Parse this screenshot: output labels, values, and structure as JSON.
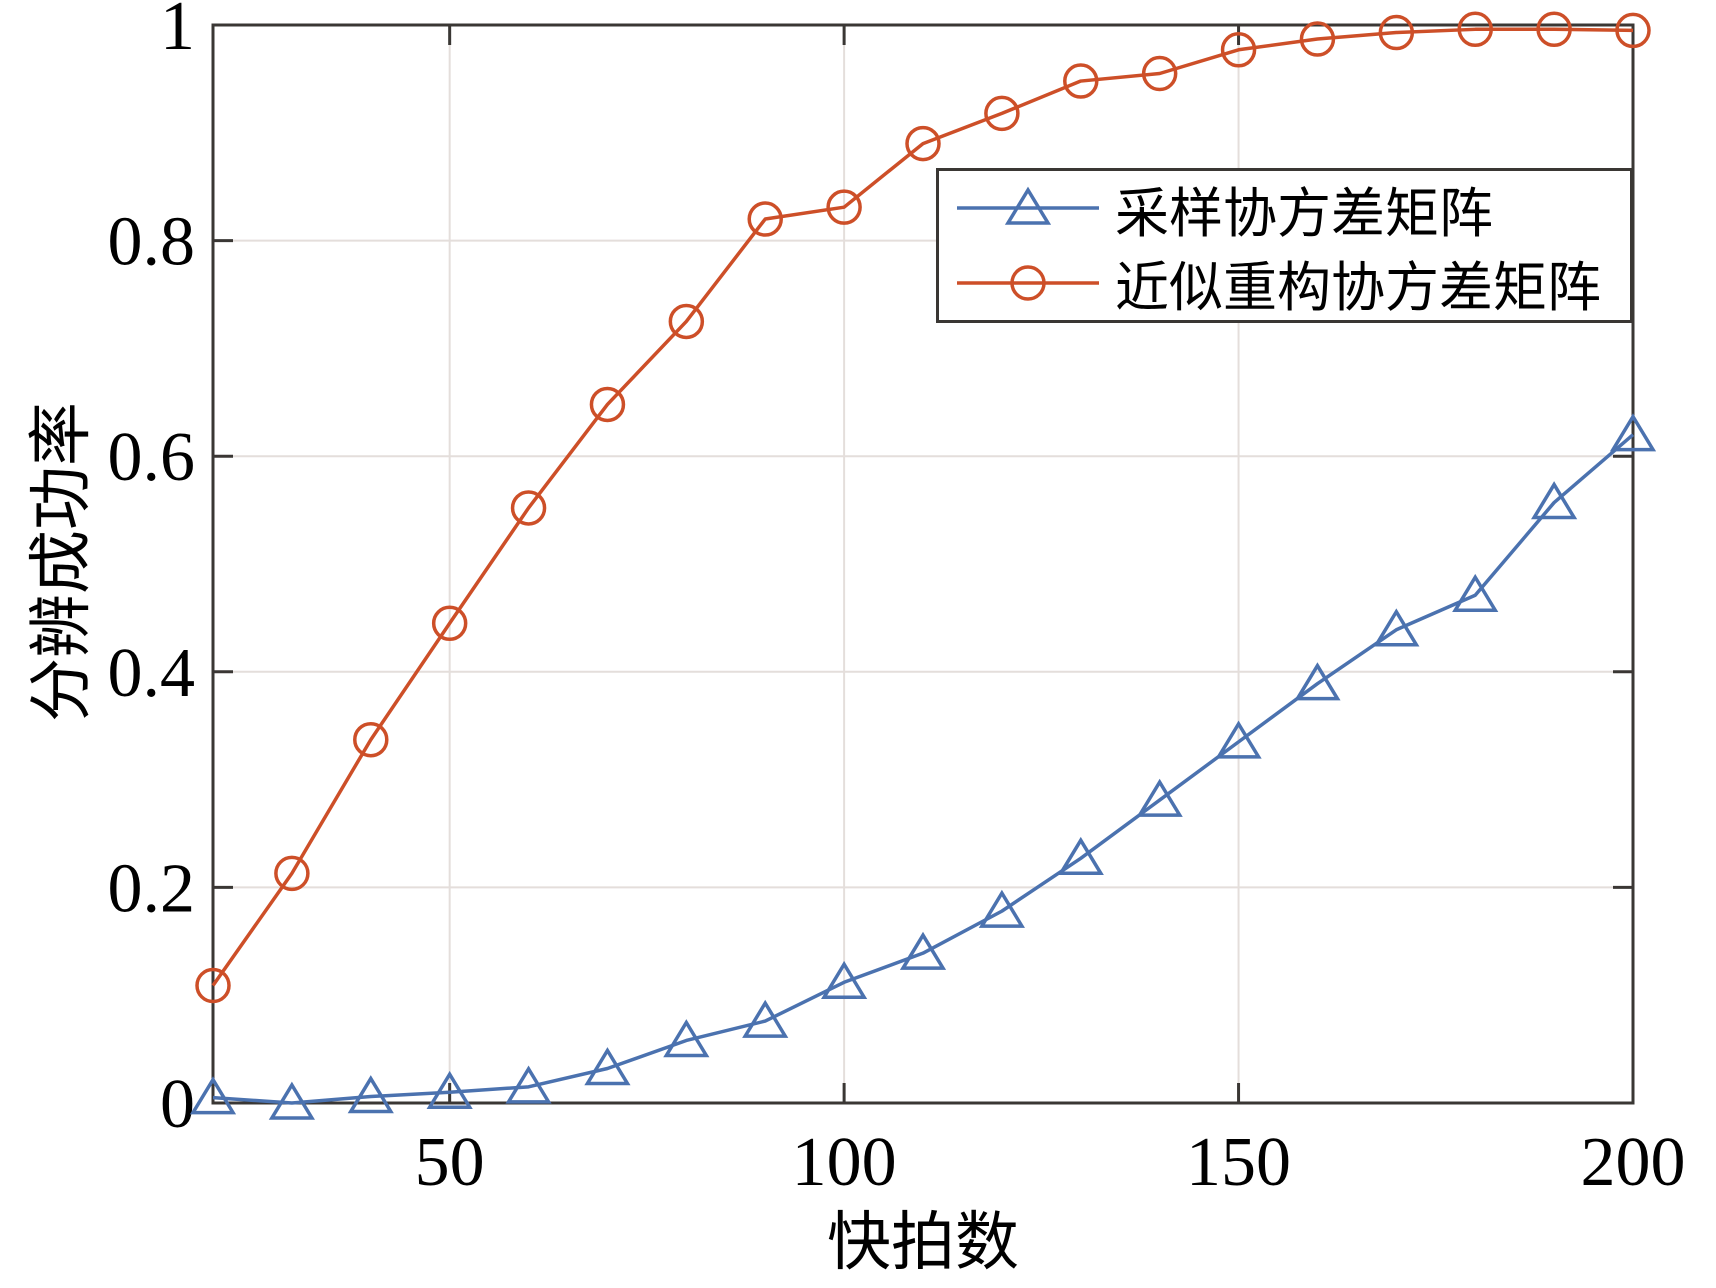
{
  "chart_data": {
    "type": "line",
    "title": "",
    "xlabel": "快拍数",
    "ylabel": "分辨成功率",
    "xlim": [
      20,
      200
    ],
    "ylim": [
      0,
      1
    ],
    "xticks": [
      50,
      100,
      150,
      200
    ],
    "xtick_labels": [
      "50",
      "100",
      "150",
      "200"
    ],
    "yticks": [
      0,
      0.2,
      0.4,
      0.6,
      0.8,
      1
    ],
    "ytick_labels": [
      "0",
      "0.2",
      "0.4",
      "0.6",
      "0.8",
      "1"
    ],
    "grid": true,
    "legend_position": "upper-right-inside",
    "x": [
      20,
      30,
      40,
      50,
      60,
      70,
      80,
      90,
      100,
      110,
      120,
      130,
      140,
      150,
      160,
      170,
      180,
      190,
      200
    ],
    "series": [
      {
        "name": "采样协方差矩阵",
        "marker": "triangle",
        "color": "#4b72af",
        "values": [
          0.005,
          0.0,
          0.006,
          0.01,
          0.015,
          0.032,
          0.058,
          0.076,
          0.112,
          0.139,
          0.178,
          0.227,
          0.281,
          0.335,
          0.389,
          0.439,
          0.471,
          0.557,
          0.62
        ]
      },
      {
        "name": "近似重构协方差矩阵",
        "marker": "circle",
        "color": "#cd4f28",
        "values": [
          0.109,
          0.213,
          0.337,
          0.445,
          0.552,
          0.648,
          0.725,
          0.82,
          0.831,
          0.89,
          0.918,
          0.948,
          0.955,
          0.977,
          0.987,
          0.993,
          0.996,
          0.996,
          0.995
        ]
      }
    ]
  },
  "colors": {
    "background": "#ffffff",
    "axis": "#3a3734",
    "grid": "#e4dedb",
    "tick_text": "#000000"
  }
}
